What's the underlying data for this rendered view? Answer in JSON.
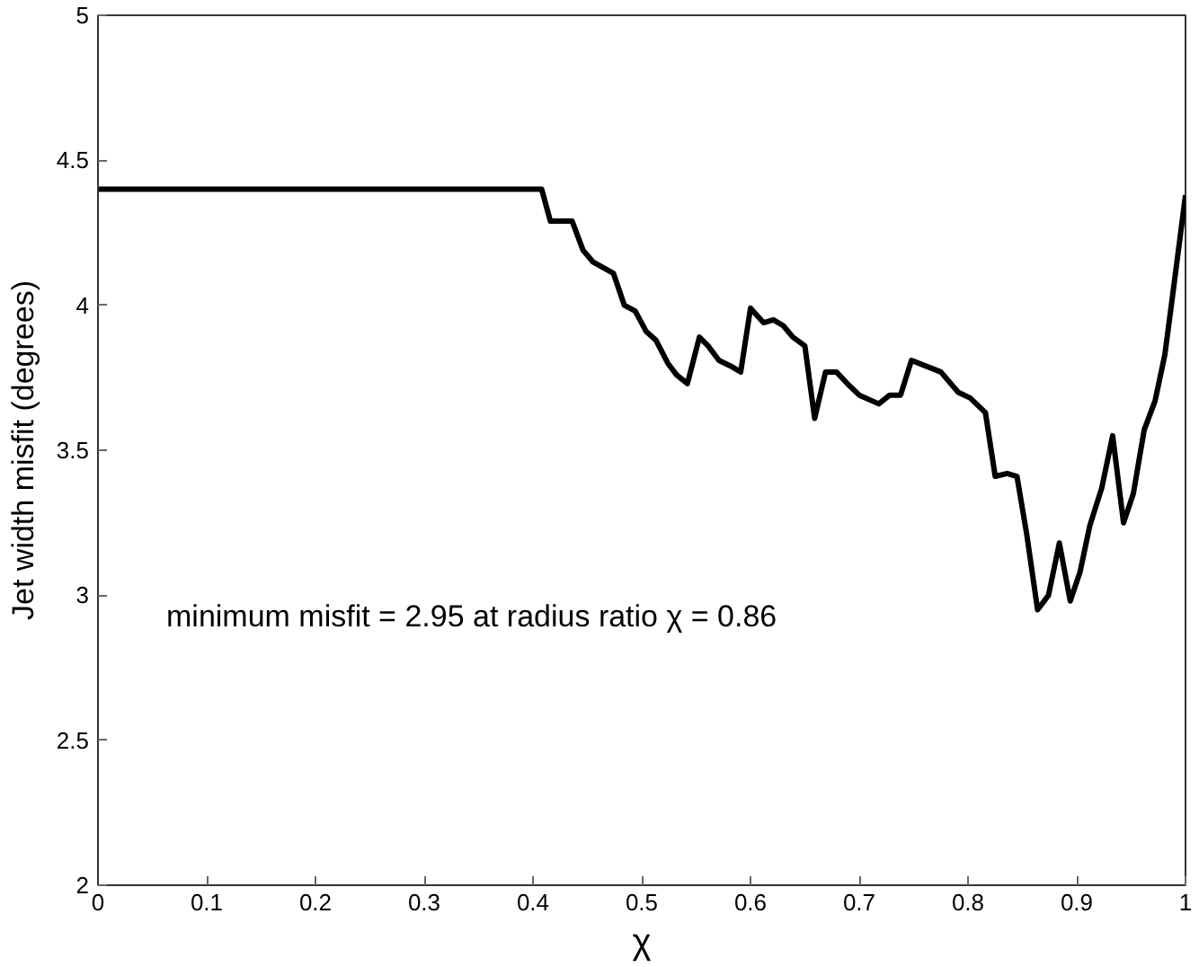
{
  "chart_data": {
    "type": "line",
    "xlabel": "χ",
    "ylabel": "Jet width misfit (degrees)",
    "annotations": [
      "minimum misfit = 2.95  at radius ratio  χ = 0.86"
    ],
    "x": [
      0,
      0.408,
      0.416,
      0.436,
      0.446,
      0.455,
      0.474,
      0.484,
      0.494,
      0.504,
      0.513,
      0.524,
      0.532,
      0.542,
      0.553,
      0.561,
      0.571,
      0.582,
      0.591,
      0.6,
      0.612,
      0.621,
      0.63,
      0.639,
      0.65,
      0.659,
      0.669,
      0.679,
      0.689,
      0.7,
      0.718,
      0.728,
      0.738,
      0.748,
      0.775,
      0.791,
      0.802,
      0.816,
      0.825,
      0.836,
      0.845,
      0.854,
      0.864,
      0.874,
      0.884,
      0.894,
      0.903,
      0.912,
      0.923,
      0.933,
      0.943,
      0.952,
      0.962,
      0.972,
      0.981,
      0.988,
      1.0
    ],
    "series": [
      {
        "color": "#000000",
        "values": [
          4.4,
          4.4,
          4.29,
          4.29,
          4.19,
          4.15,
          4.11,
          4.0,
          3.98,
          3.91,
          3.88,
          3.8,
          3.76,
          3.73,
          3.89,
          3.86,
          3.81,
          3.79,
          3.77,
          3.99,
          3.94,
          3.95,
          3.93,
          3.89,
          3.86,
          3.61,
          3.77,
          3.77,
          3.73,
          3.69,
          3.66,
          3.69,
          3.69,
          3.81,
          3.77,
          3.7,
          3.68,
          3.63,
          3.41,
          3.42,
          3.41,
          3.21,
          2.95,
          3.0,
          3.18,
          2.98,
          3.08,
          3.24,
          3.37,
          3.55,
          3.25,
          3.35,
          3.57,
          3.67,
          3.83,
          4.03,
          4.38
        ]
      }
    ],
    "xlim": [
      0,
      1
    ],
    "ylim": [
      2,
      5
    ],
    "xticks": [
      0,
      0.1,
      0.2,
      0.3,
      0.4,
      0.5,
      0.6,
      0.7,
      0.8,
      0.9,
      1
    ],
    "yticks": [
      2,
      2.5,
      3,
      3.5,
      4,
      4.5,
      5
    ],
    "grid": false,
    "marker": "none",
    "line_style": "solid"
  }
}
